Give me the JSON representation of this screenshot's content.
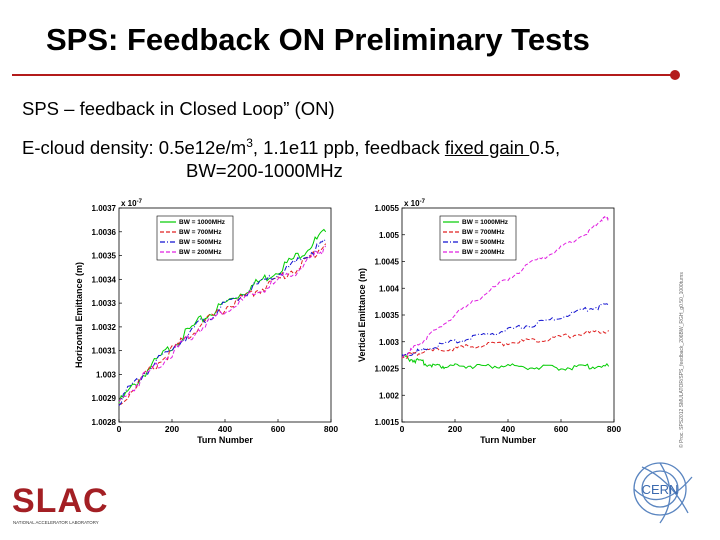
{
  "slide": {
    "title": "SPS: Feedback ON Preliminary Tests",
    "line1": "SPS – feedback in Closed Loop” (ON)",
    "line2_prefix": "E-cloud density: 0.5e12e/m",
    "line2_sup": "3",
    "line2_mid": ", 1.1e11 ppb, feedback ",
    "line2_ul": "fixed gain ",
    "line2_suffix": "0.5,",
    "line3": "BW=200-1000MHz",
    "side_note": "© Proc. SPS2012 SMULATOR/SPS_feedback_206BW_RGH_g0.50_1000turns",
    "logo_slac": "SLAC",
    "logo_slac_sub": "NATIONAL ACCELERATOR LABORATORY",
    "logo_cern": "CERN"
  },
  "colors": {
    "rule": "#b31b1b",
    "series": [
      "#00cc00",
      "#e02020",
      "#1010d0",
      "#e020e0"
    ]
  },
  "chart_data": [
    {
      "type": "line",
      "xlabel": "Turn Number",
      "ylabel": "Horizontal Emittance (m)",
      "y_multiplier": "x 10^-7",
      "xlim": [
        0,
        800
      ],
      "ylim": [
        1.0028,
        1.0037
      ],
      "xticks": [
        0,
        200,
        400,
        600,
        800
      ],
      "yticks": [
        1.0028,
        1.0029,
        1.003,
        1.0031,
        1.0032,
        1.0033,
        1.0034,
        1.0035,
        1.0036,
        1.0037
      ],
      "ytick_labels": [
        "1.0028",
        "1.0029",
        "1.003",
        "1.0031",
        "1.0032",
        "1.0033",
        "1.0034",
        "1.0035",
        "1.0036",
        "1.0037"
      ],
      "legend_position": "top-left",
      "series": [
        {
          "name": "BW = 1000MHz",
          "style": "solid",
          "x": [
            0,
            100,
            200,
            300,
            400,
            500,
            600,
            700,
            780
          ],
          "y": [
            1.00288,
            1.00301,
            1.00312,
            1.00322,
            1.0033,
            1.00337,
            1.00344,
            1.00352,
            1.0036
          ]
        },
        {
          "name": "BW = 700MHz",
          "style": "dashed",
          "x": [
            0,
            100,
            200,
            300,
            400,
            500,
            600,
            700,
            780
          ],
          "y": [
            1.00287,
            1.003,
            1.0031,
            1.0032,
            1.00328,
            1.00334,
            1.0034,
            1.00347,
            1.00355
          ]
        },
        {
          "name": "BW = 500MHz",
          "style": "dashdot",
          "x": [
            0,
            100,
            200,
            300,
            400,
            500,
            600,
            700,
            780
          ],
          "y": [
            1.00289,
            1.00301,
            1.00311,
            1.00321,
            1.00329,
            1.00336,
            1.00342,
            1.00349,
            1.00356
          ]
        },
        {
          "name": "BW = 200MHz",
          "style": "dashed",
          "x": [
            0,
            100,
            200,
            300,
            400,
            500,
            600,
            700,
            780
          ],
          "y": [
            1.00288,
            1.003,
            1.00309,
            1.00319,
            1.00327,
            1.00333,
            1.00339,
            1.00346,
            1.00354
          ]
        }
      ]
    },
    {
      "type": "line",
      "xlabel": "Turn Number",
      "ylabel": "Vertical Emittance (m)",
      "y_multiplier": "x 10^-7",
      "xlim": [
        0,
        800
      ],
      "ylim": [
        1.0015,
        1.0055
      ],
      "xticks": [
        0,
        200,
        400,
        600,
        800
      ],
      "yticks": [
        1.0015,
        1.002,
        1.0025,
        1.003,
        1.0035,
        1.004,
        1.0045,
        1.005,
        1.0055
      ],
      "ytick_labels": [
        "1.0015",
        "1.002",
        "1.0025",
        "1.003",
        "1.0035",
        "1.004",
        "1.0045",
        "1.005",
        "1.0055"
      ],
      "legend_position": "top-left",
      "series": [
        {
          "name": "BW = 1000MHz",
          "style": "solid",
          "x": [
            0,
            50,
            100,
            150,
            200,
            300,
            400,
            500,
            600,
            700,
            780
          ],
          "y": [
            1.00272,
            1.00265,
            1.00258,
            1.00254,
            1.00256,
            1.00254,
            1.00255,
            1.00252,
            1.00251,
            1.00254,
            1.00254
          ]
        },
        {
          "name": "BW = 700MHz",
          "style": "dashed",
          "x": [
            0,
            50,
            100,
            200,
            300,
            400,
            500,
            600,
            700,
            780
          ],
          "y": [
            1.00272,
            1.00278,
            1.00282,
            1.00288,
            1.00293,
            1.00298,
            1.00303,
            1.00309,
            1.00316,
            1.00321
          ]
        },
        {
          "name": "BW = 500MHz",
          "style": "dashdot",
          "x": [
            0,
            50,
            100,
            200,
            300,
            400,
            500,
            600,
            700,
            780
          ],
          "y": [
            1.00272,
            1.0028,
            1.00288,
            1.003,
            1.00311,
            1.00322,
            1.00333,
            1.00346,
            1.00362,
            1.00368
          ]
        },
        {
          "name": "BW = 200MHz",
          "style": "dashed",
          "x": [
            0,
            50,
            100,
            200,
            300,
            400,
            500,
            600,
            700,
            750,
            780
          ],
          "y": [
            1.00272,
            1.0029,
            1.0031,
            1.0035,
            1.00385,
            1.00418,
            1.0045,
            1.00475,
            1.00505,
            1.00528,
            1.0053
          ]
        }
      ]
    }
  ]
}
